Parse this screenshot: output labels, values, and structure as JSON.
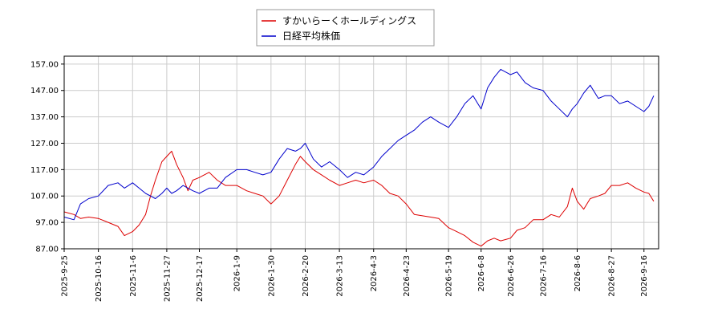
{
  "chart_data": {
    "type": "line",
    "title": "",
    "xlabel": "",
    "ylabel": "",
    "ylim": [
      87.0,
      160.0
    ],
    "yticks": [
      "87.00",
      "97.00",
      "107.00",
      "117.00",
      "127.00",
      "137.00",
      "147.00",
      "157.00"
    ],
    "xlim": [
      "2025-09-25",
      "2026-09-25"
    ],
    "xticks": [
      "2025-9-25",
      "2025-10-16",
      "2025-11-6",
      "2025-11-27",
      "2025-12-17",
      "2026-1-9",
      "2026-1-30",
      "2026-2-20",
      "2026-3-13",
      "2026-4-3",
      "2026-4-23",
      "2026-5-19",
      "2026-6-8",
      "2026-6-26",
      "2026-7-16",
      "2026-8-6",
      "2026-8-27",
      "2026-9-16"
    ],
    "grid": true,
    "legend": "top-center",
    "series": [
      {
        "name": "すかいらーくホールディングス",
        "color": "#dd0000",
        "points": [
          [
            "2025-09-25",
            101.0
          ],
          [
            "2025-10-01",
            100.0
          ],
          [
            "2025-10-05",
            98.5
          ],
          [
            "2025-10-10",
            99.0
          ],
          [
            "2025-10-16",
            98.5
          ],
          [
            "2025-10-22",
            97.0
          ],
          [
            "2025-10-28",
            95.5
          ],
          [
            "2025-11-01",
            92.0
          ],
          [
            "2025-11-06",
            93.5
          ],
          [
            "2025-11-10",
            96.0
          ],
          [
            "2025-11-14",
            100.0
          ],
          [
            "2025-11-17",
            107.0
          ],
          [
            "2025-11-20",
            113.0
          ],
          [
            "2025-11-24",
            120.0
          ],
          [
            "2025-11-27",
            122.0
          ],
          [
            "2025-11-30",
            124.0
          ],
          [
            "2025-12-03",
            119.0
          ],
          [
            "2025-12-07",
            114.0
          ],
          [
            "2025-12-10",
            109.0
          ],
          [
            "2025-12-13",
            113.0
          ],
          [
            "2025-12-17",
            114.0
          ],
          [
            "2025-12-23",
            116.0
          ],
          [
            "2025-12-28",
            113.0
          ],
          [
            "2026-01-02",
            111.0
          ],
          [
            "2026-01-09",
            111.0
          ],
          [
            "2026-01-15",
            109.0
          ],
          [
            "2026-01-20",
            108.0
          ],
          [
            "2026-01-25",
            107.0
          ],
          [
            "2026-01-30",
            104.0
          ],
          [
            "2026-02-04",
            107.0
          ],
          [
            "2026-02-09",
            113.0
          ],
          [
            "2026-02-14",
            119.0
          ],
          [
            "2026-02-17",
            122.0
          ],
          [
            "2026-02-20",
            120.0
          ],
          [
            "2026-02-25",
            117.0
          ],
          [
            "2026-03-02",
            115.0
          ],
          [
            "2026-03-07",
            113.0
          ],
          [
            "2026-03-13",
            111.0
          ],
          [
            "2026-03-18",
            112.0
          ],
          [
            "2026-03-23",
            113.0
          ],
          [
            "2026-03-28",
            112.0
          ],
          [
            "2026-04-03",
            113.0
          ],
          [
            "2026-04-08",
            111.0
          ],
          [
            "2026-04-13",
            108.0
          ],
          [
            "2026-04-18",
            107.0
          ],
          [
            "2026-04-23",
            104.0
          ],
          [
            "2026-04-28",
            100.0
          ],
          [
            "2026-05-03",
            99.5
          ],
          [
            "2026-05-08",
            99.0
          ],
          [
            "2026-05-13",
            98.5
          ],
          [
            "2026-05-19",
            95.0
          ],
          [
            "2026-05-24",
            93.5
          ],
          [
            "2026-05-29",
            92.0
          ],
          [
            "2026-06-03",
            89.5
          ],
          [
            "2026-06-08",
            88.0
          ],
          [
            "2026-06-12",
            90.0
          ],
          [
            "2026-06-16",
            91.0
          ],
          [
            "2026-06-20",
            90.0
          ],
          [
            "2026-06-26",
            91.0
          ],
          [
            "2026-06-30",
            94.0
          ],
          [
            "2026-07-05",
            95.0
          ],
          [
            "2026-07-10",
            98.0
          ],
          [
            "2026-07-16",
            98.0
          ],
          [
            "2026-07-21",
            100.0
          ],
          [
            "2026-07-26",
            99.0
          ],
          [
            "2026-07-31",
            103.0
          ],
          [
            "2026-08-03",
            110.0
          ],
          [
            "2026-08-06",
            105.0
          ],
          [
            "2026-08-10",
            102.0
          ],
          [
            "2026-08-14",
            106.0
          ],
          [
            "2026-08-19",
            107.0
          ],
          [
            "2026-08-23",
            108.0
          ],
          [
            "2026-08-27",
            111.0
          ],
          [
            "2026-09-01",
            111.0
          ],
          [
            "2026-09-06",
            112.0
          ],
          [
            "2026-09-11",
            110.0
          ],
          [
            "2026-09-16",
            108.5
          ],
          [
            "2026-09-19",
            108.0
          ],
          [
            "2026-09-22",
            105.0
          ]
        ]
      },
      {
        "name": "日経平均株価",
        "color": "#0000cc",
        "points": [
          [
            "2025-09-25",
            99.0
          ],
          [
            "2025-10-01",
            98.0
          ],
          [
            "2025-10-05",
            104.0
          ],
          [
            "2025-10-10",
            106.0
          ],
          [
            "2025-10-16",
            107.0
          ],
          [
            "2025-10-22",
            111.0
          ],
          [
            "2025-10-28",
            112.0
          ],
          [
            "2025-11-01",
            110.0
          ],
          [
            "2025-11-06",
            112.0
          ],
          [
            "2025-11-10",
            110.0
          ],
          [
            "2025-11-14",
            108.0
          ],
          [
            "2025-11-17",
            107.0
          ],
          [
            "2025-11-20",
            106.0
          ],
          [
            "2025-11-24",
            108.0
          ],
          [
            "2025-11-27",
            110.0
          ],
          [
            "2025-11-30",
            108.0
          ],
          [
            "2025-12-03",
            109.0
          ],
          [
            "2025-12-07",
            111.0
          ],
          [
            "2025-12-10",
            110.0
          ],
          [
            "2025-12-13",
            109.0
          ],
          [
            "2025-12-17",
            108.0
          ],
          [
            "2025-12-23",
            110.0
          ],
          [
            "2025-12-28",
            110.0
          ],
          [
            "2026-01-02",
            114.0
          ],
          [
            "2026-01-09",
            117.0
          ],
          [
            "2026-01-15",
            117.0
          ],
          [
            "2026-01-20",
            116.0
          ],
          [
            "2026-01-25",
            115.0
          ],
          [
            "2026-01-30",
            116.0
          ],
          [
            "2026-02-04",
            121.0
          ],
          [
            "2026-02-09",
            125.0
          ],
          [
            "2026-02-14",
            124.0
          ],
          [
            "2026-02-17",
            125.0
          ],
          [
            "2026-02-20",
            127.0
          ],
          [
            "2026-02-25",
            121.0
          ],
          [
            "2026-03-02",
            118.0
          ],
          [
            "2026-03-07",
            120.0
          ],
          [
            "2026-03-13",
            117.0
          ],
          [
            "2026-03-18",
            114.0
          ],
          [
            "2026-03-23",
            116.0
          ],
          [
            "2026-03-28",
            115.0
          ],
          [
            "2026-04-03",
            118.0
          ],
          [
            "2026-04-08",
            122.0
          ],
          [
            "2026-04-13",
            125.0
          ],
          [
            "2026-04-18",
            128.0
          ],
          [
            "2026-04-23",
            130.0
          ],
          [
            "2026-04-28",
            132.0
          ],
          [
            "2026-05-03",
            135.0
          ],
          [
            "2026-05-08",
            137.0
          ],
          [
            "2026-05-13",
            135.0
          ],
          [
            "2026-05-19",
            133.0
          ],
          [
            "2026-05-24",
            137.0
          ],
          [
            "2026-05-29",
            142.0
          ],
          [
            "2026-06-03",
            145.0
          ],
          [
            "2026-06-08",
            140.0
          ],
          [
            "2026-06-12",
            148.0
          ],
          [
            "2026-06-16",
            152.0
          ],
          [
            "2026-06-20",
            155.0
          ],
          [
            "2026-06-26",
            153.0
          ],
          [
            "2026-06-30",
            154.0
          ],
          [
            "2026-07-05",
            150.0
          ],
          [
            "2026-07-10",
            148.0
          ],
          [
            "2026-07-16",
            147.0
          ],
          [
            "2026-07-21",
            143.0
          ],
          [
            "2026-07-26",
            140.0
          ],
          [
            "2026-07-31",
            137.0
          ],
          [
            "2026-08-03",
            140.0
          ],
          [
            "2026-08-06",
            142.0
          ],
          [
            "2026-08-10",
            146.0
          ],
          [
            "2026-08-14",
            149.0
          ],
          [
            "2026-08-19",
            144.0
          ],
          [
            "2026-08-23",
            145.0
          ],
          [
            "2026-08-27",
            145.0
          ],
          [
            "2026-09-01",
            142.0
          ],
          [
            "2026-09-06",
            143.0
          ],
          [
            "2026-09-11",
            141.0
          ],
          [
            "2026-09-16",
            139.0
          ],
          [
            "2026-09-19",
            141.0
          ],
          [
            "2026-09-22",
            145.0
          ]
        ]
      }
    ]
  }
}
